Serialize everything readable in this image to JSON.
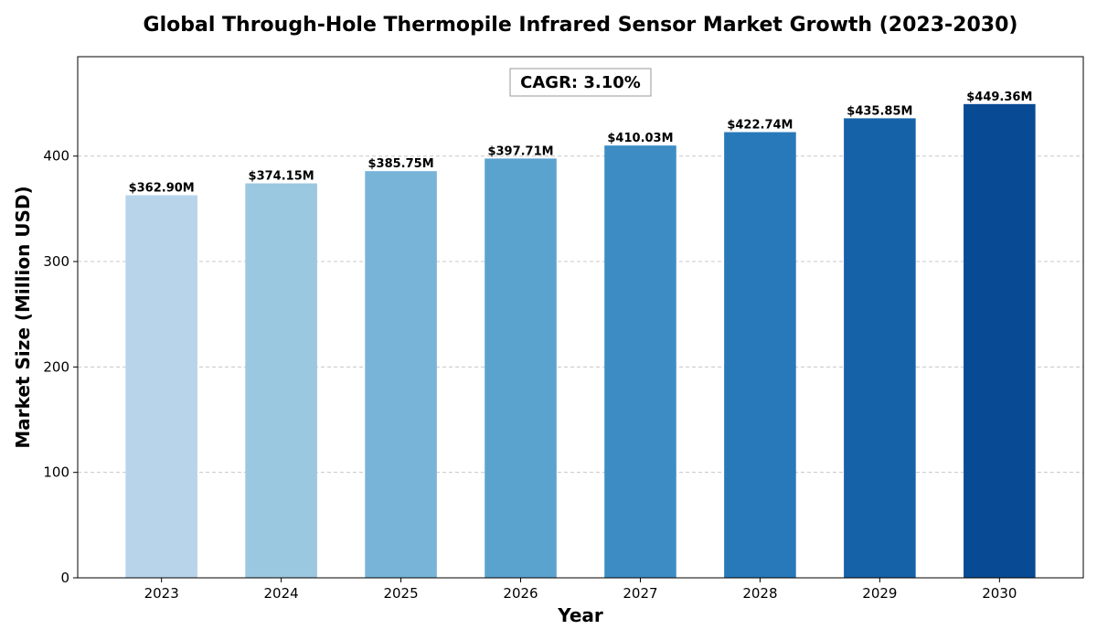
{
  "chart_data": {
    "type": "bar",
    "title": "Global Through-Hole Thermopile Infrared Sensor Market Growth (2023-2030)",
    "xlabel": "Year",
    "ylabel": "Market Size (Million USD)",
    "categories": [
      "2023",
      "2024",
      "2025",
      "2026",
      "2027",
      "2028",
      "2029",
      "2030"
    ],
    "values": [
      362.9,
      374.15,
      385.75,
      397.71,
      410.03,
      422.74,
      435.85,
      449.36
    ],
    "data_labels": [
      "$362.90M",
      "$374.15M",
      "$385.75M",
      "$397.71M",
      "$410.03M",
      "$422.74M",
      "$435.85M",
      "$449.36M"
    ],
    "bar_colors": [
      "#b7d4ea",
      "#9ac8e0",
      "#77b4d8",
      "#5ba3cf",
      "#3d8dc4",
      "#2879b9",
      "#1562a9",
      "#084b94"
    ],
    "ylim": [
      0,
      494.3
    ],
    "yticks": [
      0,
      100,
      200,
      300,
      400
    ],
    "grid": "horizontal dashed",
    "annotation": "CAGR: 3.10%"
  }
}
